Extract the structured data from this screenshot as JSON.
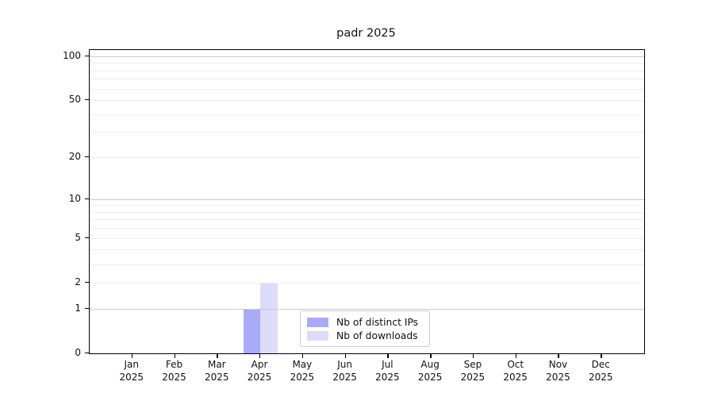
{
  "chart_data": {
    "type": "bar",
    "title": "padr 2025",
    "year": "2025",
    "months": [
      "Jan",
      "Feb",
      "Mar",
      "Apr",
      "May",
      "Jun",
      "Jul",
      "Aug",
      "Sep",
      "Oct",
      "Nov",
      "Dec"
    ],
    "series": [
      {
        "name": "Nb of distinct IPs",
        "color": "#a9aaf8",
        "values": [
          0,
          0,
          0,
          1,
          0,
          0,
          0,
          0,
          0,
          0,
          0,
          0
        ]
      },
      {
        "name": "Nb of downloads",
        "color": "#dcdcf8",
        "values": [
          0,
          0,
          0,
          2,
          0,
          0,
          0,
          0,
          0,
          0,
          0,
          0
        ]
      }
    ],
    "yscale": "log1p",
    "ylim": [
      0,
      110
    ],
    "ytick_values": [
      0,
      1,
      2,
      5,
      10,
      20,
      50,
      100
    ],
    "gridlines": {
      "major": [
        1,
        10,
        100
      ],
      "minor": [
        2,
        3,
        4,
        5,
        6,
        7,
        8,
        9,
        20,
        30,
        40,
        50,
        60,
        70,
        80,
        90
      ]
    },
    "legend": {
      "position": "inside-bottom-center"
    },
    "grid": true
  },
  "colors": {
    "bar_distinct_ips": "#a9aaf8",
    "bar_downloads": "#dcdcf8",
    "grid_major": "#c9c9c9",
    "grid_minor": "#ededed",
    "axis": "#000000",
    "background": "#ffffff",
    "legend_border": "#cccccc"
  }
}
